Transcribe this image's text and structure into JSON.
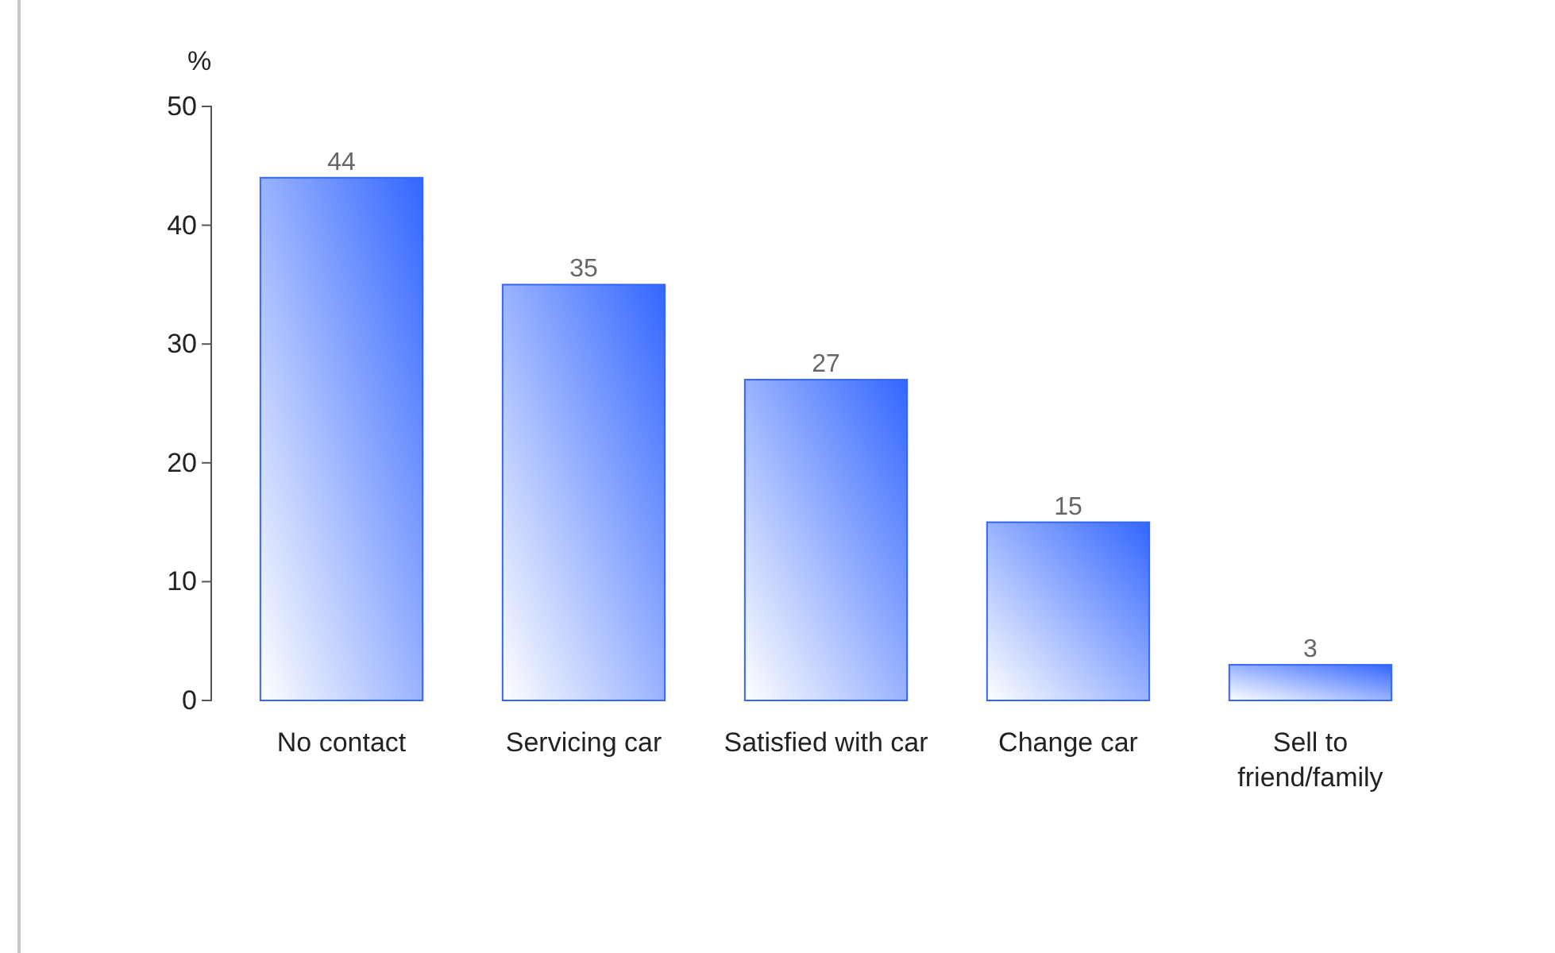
{
  "chart_data": {
    "type": "bar",
    "ylabel": "%",
    "categories": [
      "No contact",
      "Servicing car",
      "Satisfied with car",
      "Change car",
      "Sell to friend/family"
    ],
    "values": [
      44,
      35,
      27,
      15,
      3
    ],
    "color": "#3366ff",
    "ylim": [
      0,
      50
    ],
    "yticks": [
      0,
      10,
      20,
      30,
      40,
      50
    ],
    "grid": false,
    "data_labels": true
  }
}
